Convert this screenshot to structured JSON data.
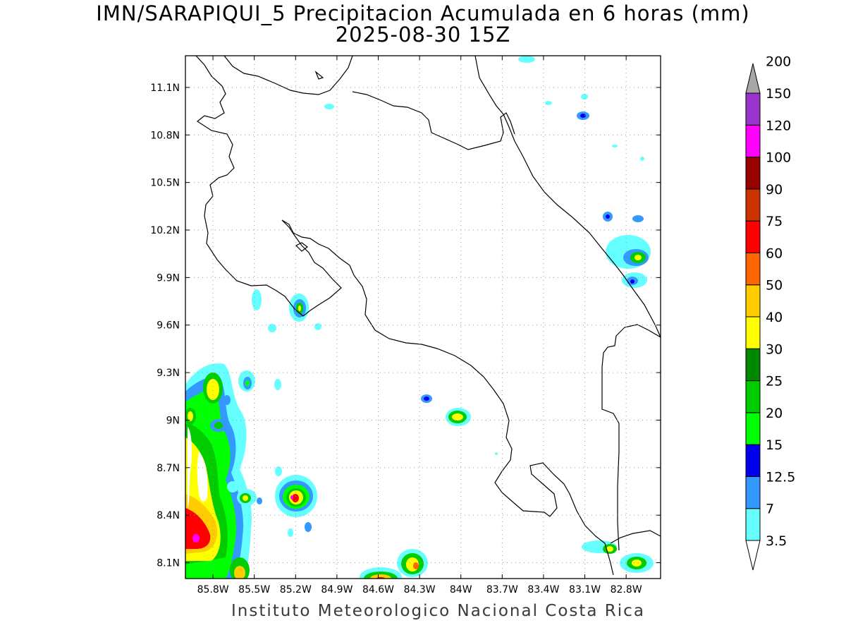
{
  "title": {
    "line1": "IMN/SARAPIQUI_5 Precipitacion Acumulada en 6 horas (mm)",
    "line2": "2025-08-30 15Z"
  },
  "credit": "Instituto Meteorologico Nacional Costa Rica",
  "map": {
    "lon_range": [
      -86.0,
      -82.55
    ],
    "lat_range": [
      8.0,
      11.3
    ],
    "lon_ticks": [
      {
        "value": -85.8,
        "label": "85.8W"
      },
      {
        "value": -85.5,
        "label": "85.5W"
      },
      {
        "value": -85.2,
        "label": "85.2W"
      },
      {
        "value": -84.9,
        "label": "84.9W"
      },
      {
        "value": -84.6,
        "label": "84.6W"
      },
      {
        "value": -84.3,
        "label": "84.3W"
      },
      {
        "value": -84.0,
        "label": "84W"
      },
      {
        "value": -83.7,
        "label": "83.7W"
      },
      {
        "value": -83.4,
        "label": "83.4W"
      },
      {
        "value": -83.1,
        "label": "83.1W"
      },
      {
        "value": -82.8,
        "label": "82.8W"
      }
    ],
    "lat_ticks": [
      {
        "value": 8.1,
        "label": "8.1N"
      },
      {
        "value": 8.4,
        "label": "8.4N"
      },
      {
        "value": 8.7,
        "label": "8.7N"
      },
      {
        "value": 9.0,
        "label": "9N"
      },
      {
        "value": 9.3,
        "label": "9.3N"
      },
      {
        "value": 9.6,
        "label": "9.6N"
      },
      {
        "value": 9.9,
        "label": "9.9N"
      },
      {
        "value": 10.2,
        "label": "10.2N"
      },
      {
        "value": 10.5,
        "label": "10.5N"
      },
      {
        "value": 10.8,
        "label": "10.8N"
      },
      {
        "value": 11.1,
        "label": "11.1N"
      }
    ],
    "grid": true
  },
  "colorbar": {
    "labels": [
      "3.5",
      "7",
      "12.5",
      "15",
      "20",
      "25",
      "30",
      "40",
      "50",
      "60",
      "75",
      "90",
      "100",
      "120",
      "150",
      "200"
    ],
    "colors": [
      "#66ffff",
      "#3399ff",
      "#0000ee",
      "#00ff00",
      "#00cc00",
      "#008800",
      "#ffff00",
      "#ffcc00",
      "#ff6600",
      "#ff0000",
      "#cc3300",
      "#990000",
      "#ff00ff",
      "#9933cc",
      "#f4f4f4",
      "#a8a8a8"
    ]
  }
}
